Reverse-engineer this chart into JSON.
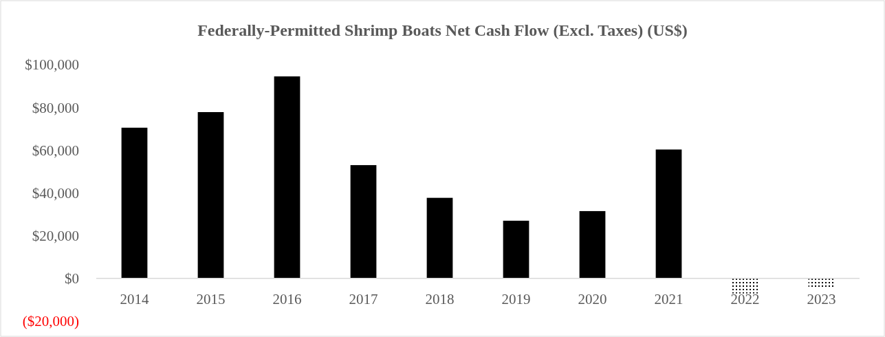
{
  "chart_data": {
    "type": "bar",
    "title": "Federally-Permitted Shrimp Boats Net Cash Flow (Excl. Taxes) (US$)",
    "categories": [
      "2014",
      "2015",
      "2016",
      "2017",
      "2018",
      "2019",
      "2020",
      "2021",
      "2022",
      "2023"
    ],
    "values": [
      70500,
      77800,
      94500,
      53000,
      37700,
      27000,
      31500,
      60300,
      -7000,
      -4500
    ],
    "colors": [
      "#000000",
      "#000000",
      "#000000",
      "#000000",
      "#000000",
      "#000000",
      "#000000",
      "#000000",
      "#000000",
      "#000000"
    ],
    "ylim": [
      -20000,
      100000
    ],
    "yticks": [
      {
        "value": -20000,
        "label": "($20,000)"
      },
      {
        "value": 0,
        "label": "$0"
      },
      {
        "value": 20000,
        "label": "$20,000"
      },
      {
        "value": 40000,
        "label": "$40,000"
      },
      {
        "value": 60000,
        "label": "$60,000"
      },
      {
        "value": 80000,
        "label": "$80,000"
      },
      {
        "value": 100000,
        "label": "$100,000"
      }
    ],
    "grid": false
  }
}
